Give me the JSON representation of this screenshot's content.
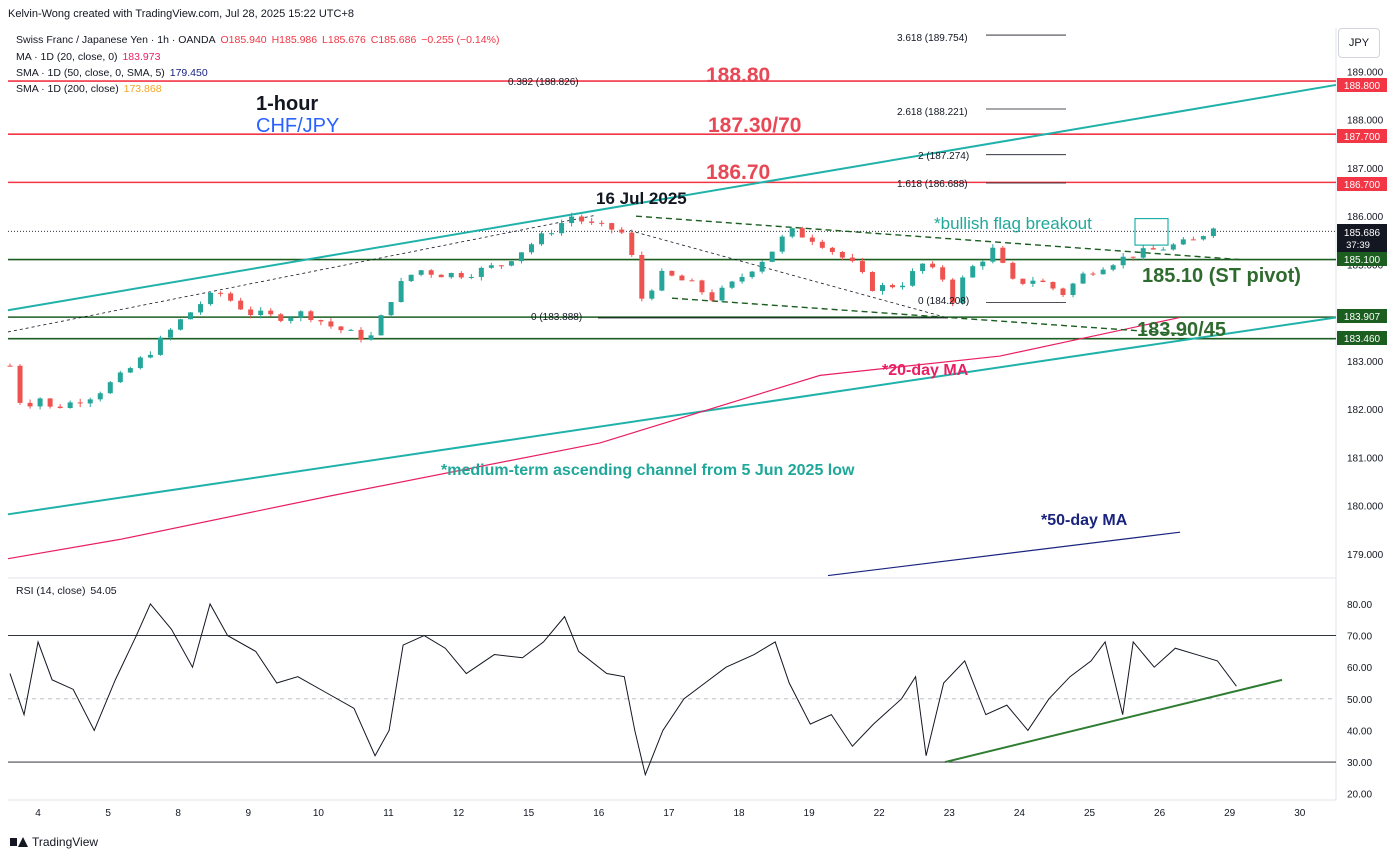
{
  "header": {
    "credit": "Kelvin-Wong created with TradingView.com, Jul 28, 2025 15:22 UTC+8"
  },
  "legend": {
    "symbol": "Swiss Franc / Japanese Yen · 1h · OANDA",
    "o": "O185.940",
    "h": "H185.986",
    "l": "L185.676",
    "c": "C185.686",
    "chg": "−0.255 (−0.14%)",
    "ma20_label": "MA · 1D (20, close, 0)",
    "ma20_value": "183.973",
    "sma50_label": "SMA · 1D (50, close, 0, SMA, 5)",
    "sma50_value": "179.450",
    "sma200_label": "SMA · 1D (200, close)",
    "sma200_value": "173.868",
    "rsi_label": "RSI (14, close)",
    "rsi_value": "54.05"
  },
  "currency": "JPY",
  "annotations": {
    "timeframe": "1-hour",
    "pair": "CHF/JPY",
    "r1": "188.80",
    "r2": "187.30/70",
    "r3": "186.70",
    "date": "16 Jul 2025",
    "flag": "*bullish flag breakout",
    "pivot": "185.10 (ST pivot)",
    "support": "183.90/45",
    "ma20": "*20-day MA",
    "channel": "*medium-term ascending channel from 5 Jun 2025 low",
    "ma50": "*50-day MA"
  },
  "fib": [
    "3.618 (189.754)",
    "2.618 (188.221)",
    "2 (187.274)",
    "1.618 (186.688)",
    "0.382 (188.826)",
    "0 (184.208)",
    "0 (183.888)"
  ],
  "price_tags": {
    "p188_8": "188.800",
    "p187_7": "187.700",
    "p186_7": "186.700",
    "last": "185.686",
    "countdown": "37:39",
    "p185_1": "185.100",
    "p183_907": "183.907",
    "p183_46": "183.460"
  },
  "colors": {
    "up": "#26a69a",
    "down": "#ef5350",
    "resistance": "#f23645",
    "support": "#1b5e20",
    "channel": "#20b2aa",
    "ma20": "#e91e63",
    "ma50": "#1a237e",
    "label_red": "#e84855",
    "label_teal": "#1fa89a",
    "pivot_green": "#2e6b2e"
  },
  "footer": {
    "brand": "TradingView"
  },
  "chart_data": {
    "type": "candlestick",
    "title": "Swiss Franc / Japanese Yen · 1h · OANDA",
    "y_axis_ticks": [
      "189.000",
      "188.000",
      "187.000",
      "186.000",
      "185.000",
      "184.000",
      "183.000",
      "182.000",
      "181.000",
      "180.000",
      "179.000"
    ],
    "x_axis_ticks": [
      "4",
      "5",
      "8",
      "9",
      "10",
      "11",
      "12",
      "15",
      "16",
      "17",
      "18",
      "19",
      "22",
      "23",
      "24",
      "25",
      "26",
      "29",
      "30"
    ],
    "ylim": [
      178.5,
      189.9
    ],
    "horizontal_levels": [
      188.8,
      187.7,
      186.7,
      185.1,
      183.907,
      183.46
    ],
    "price_path": [
      [
        0,
        182.9
      ],
      [
        0.05,
        182.2
      ],
      [
        0.1,
        182.2
      ],
      [
        0.28,
        182.1
      ],
      [
        0.35,
        182.5
      ],
      [
        0.5,
        182.0
      ],
      [
        0.8,
        182.1
      ],
      [
        1.2,
        182.3
      ],
      [
        1.6,
        182.7
      ],
      [
        2.0,
        183.2
      ],
      [
        2.4,
        183.8
      ],
      [
        2.8,
        184.3
      ],
      [
        3.0,
        184.4
      ],
      [
        3.4,
        184.0
      ],
      [
        3.8,
        183.9
      ],
      [
        4.2,
        184.0
      ],
      [
        4.6,
        183.7
      ],
      [
        5.0,
        183.5
      ],
      [
        5.15,
        183.5
      ],
      [
        5.5,
        184.5
      ],
      [
        5.8,
        184.9
      ],
      [
        6.1,
        184.8
      ],
      [
        6.5,
        184.8
      ],
      [
        7.0,
        185.0
      ],
      [
        7.5,
        185.5
      ],
      [
        8.0,
        186.0
      ],
      [
        8.3,
        185.8
      ],
      [
        8.7,
        185.7
      ],
      [
        8.9,
        185.0
      ],
      [
        9.0,
        184.3
      ],
      [
        9.3,
        184.8
      ],
      [
        9.7,
        184.6
      ],
      [
        10.0,
        184.3
      ],
      [
        10.3,
        184.6
      ],
      [
        10.8,
        185.2
      ],
      [
        11.1,
        185.7
      ],
      [
        11.5,
        185.5
      ],
      [
        12.0,
        185.0
      ],
      [
        12.3,
        184.5
      ],
      [
        12.7,
        184.6
      ],
      [
        13.0,
        185.0
      ],
      [
        13.3,
        184.7
      ],
      [
        13.45,
        184.2
      ],
      [
        13.6,
        184.8
      ],
      [
        14.0,
        185.3
      ],
      [
        14.3,
        184.6
      ],
      [
        14.6,
        184.7
      ],
      [
        15.0,
        184.4
      ],
      [
        15.3,
        184.8
      ],
      [
        15.6,
        185.0
      ],
      [
        16.0,
        185.2
      ],
      [
        16.3,
        185.3
      ],
      [
        16.6,
        185.4
      ],
      [
        16.9,
        185.5
      ],
      [
        17.2,
        185.9
      ],
      [
        17.47,
        185.75
      ]
    ],
    "rsi": {
      "period": 14,
      "last": 54.05,
      "levels": [
        30,
        50,
        70
      ],
      "ylim": [
        18,
        86
      ],
      "ticks": [
        "80.00",
        "70.00",
        "60.00",
        "50.00",
        "40.00",
        "30.00",
        "20.00"
      ],
      "path": [
        [
          0,
          58
        ],
        [
          0.2,
          45
        ],
        [
          0.4,
          68
        ],
        [
          0.6,
          56
        ],
        [
          0.9,
          53
        ],
        [
          1.2,
          40
        ],
        [
          1.5,
          56
        ],
        [
          1.8,
          70
        ],
        [
          2.0,
          80
        ],
        [
          2.3,
          72
        ],
        [
          2.6,
          60
        ],
        [
          2.85,
          80
        ],
        [
          3.1,
          70
        ],
        [
          3.5,
          65
        ],
        [
          3.8,
          55
        ],
        [
          4.1,
          57
        ],
        [
          4.5,
          52
        ],
        [
          4.9,
          47
        ],
        [
          5.2,
          32
        ],
        [
          5.4,
          40
        ],
        [
          5.6,
          67
        ],
        [
          5.9,
          70
        ],
        [
          6.2,
          66
        ],
        [
          6.5,
          58
        ],
        [
          6.9,
          64
        ],
        [
          7.3,
          63
        ],
        [
          7.6,
          68
        ],
        [
          7.9,
          76
        ],
        [
          8.1,
          65
        ],
        [
          8.5,
          58
        ],
        [
          8.75,
          57
        ],
        [
          8.9,
          40
        ],
        [
          9.05,
          26
        ],
        [
          9.3,
          40
        ],
        [
          9.6,
          50
        ],
        [
          9.9,
          55
        ],
        [
          10.2,
          60
        ],
        [
          10.6,
          64
        ],
        [
          10.9,
          68
        ],
        [
          11.1,
          55
        ],
        [
          11.4,
          42
        ],
        [
          11.7,
          45
        ],
        [
          12.0,
          35
        ],
        [
          12.3,
          42
        ],
        [
          12.7,
          50
        ],
        [
          12.9,
          57
        ],
        [
          13.05,
          32
        ],
        [
          13.3,
          55
        ],
        [
          13.6,
          62
        ],
        [
          13.9,
          45
        ],
        [
          14.2,
          48
        ],
        [
          14.5,
          40
        ],
        [
          14.8,
          50
        ],
        [
          15.1,
          57
        ],
        [
          15.4,
          62
        ],
        [
          15.6,
          68
        ],
        [
          15.85,
          45
        ],
        [
          16.0,
          68
        ],
        [
          16.3,
          60
        ],
        [
          16.6,
          66
        ],
        [
          16.9,
          64
        ],
        [
          17.2,
          62
        ],
        [
          17.47,
          54
        ]
      ]
    }
  }
}
